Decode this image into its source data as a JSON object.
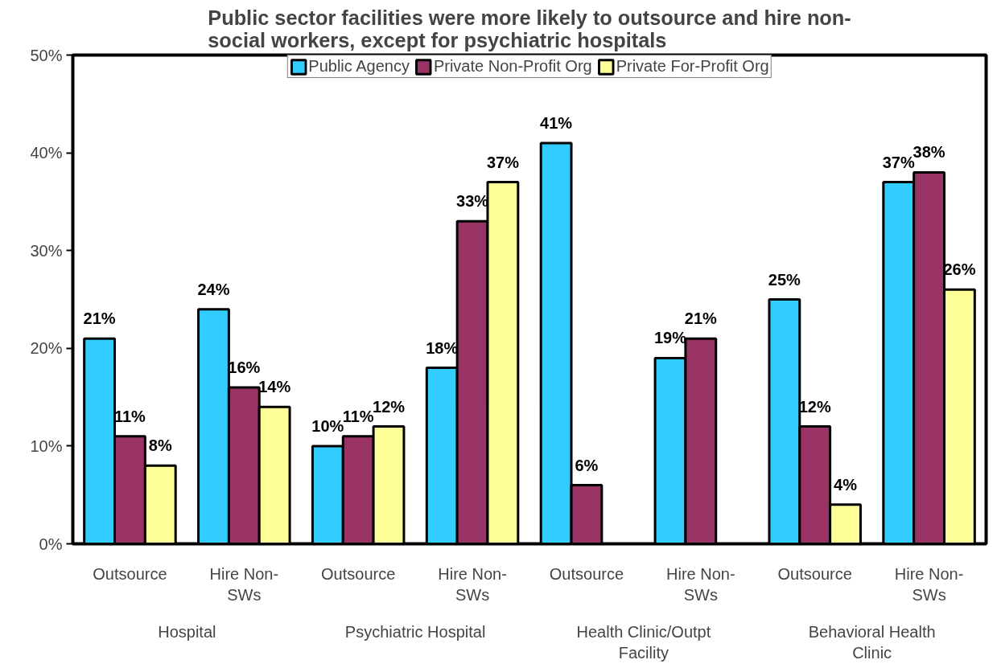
{
  "chart_data": {
    "type": "bar",
    "title": "Public sector facilities were more likely to outsource and hire non-social workers, except for psychiatric hospitals",
    "categories": [
      "Outsource",
      "Hire Non-SWs",
      "Outsource",
      "Hire Non-SWs",
      "Outsource",
      "Hire Non-SWs",
      "Outsource",
      "Hire Non-SWs"
    ],
    "annotations": [
      "Hospital",
      "Psychiatric Hospital",
      "Health Clinic/Outpt Facility",
      "Behavioral Health Clinic"
    ],
    "series": [
      {
        "name": "Public Agency",
        "color": "#33ccff",
        "values": [
          21,
          24,
          10,
          18,
          41,
          19,
          25,
          37
        ],
        "value_labels": [
          "21%",
          "24%",
          "10%",
          "18%",
          "41%",
          "19%",
          "25%",
          "37%"
        ]
      },
      {
        "name": "Private Non-Profit Org",
        "color": "#993366",
        "values": [
          11,
          16,
          11,
          33,
          6,
          21,
          12,
          38
        ],
        "value_labels": [
          "11%",
          "16%",
          "11%",
          "33%",
          "6%",
          "21%",
          "12%",
          "38%"
        ]
      },
      {
        "name": "Private For-Profit Org",
        "color": "#ffff99",
        "values": [
          8,
          14,
          12,
          37,
          null,
          null,
          4,
          26
        ],
        "value_labels": [
          "8%",
          "14%",
          "12%",
          "37%",
          null,
          null,
          "4%",
          "26%"
        ]
      }
    ],
    "ylim": [
      0,
      50
    ],
    "yticks": [
      {
        "value": 0,
        "label": "0%"
      },
      {
        "value": 10,
        "label": "10%"
      },
      {
        "value": 20,
        "label": "20%"
      },
      {
        "value": 30,
        "label": "30%"
      },
      {
        "value": 40,
        "label": "40%"
      },
      {
        "value": 50,
        "label": "50%"
      }
    ],
    "grid": false,
    "legend": "top"
  }
}
